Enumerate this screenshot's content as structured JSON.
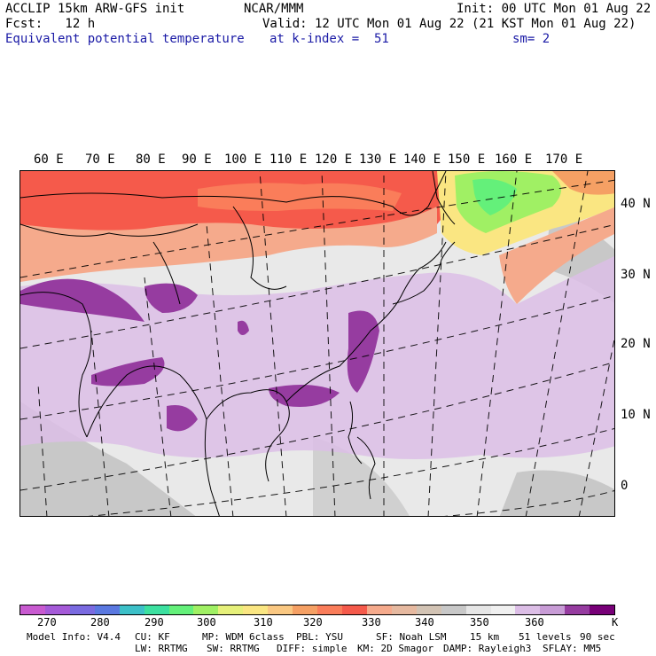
{
  "header": {
    "line1_left": "ACCLIP 15km ARW-GFS init",
    "line1_center": "NCAR/MMM",
    "line1_right": "Init: 00 UTC Mon 01 Aug 22",
    "line2_left": "Fcst:   12 h",
    "line2_right": "Valid: 12 UTC Mon 01 Aug 22 (21 KST Mon 01 Aug 22)",
    "line3_field": "Equivalent potential temperature",
    "line3_level": "at k-index =  51",
    "line3_smooth": "sm= 2"
  },
  "map": {
    "lon_labels": [
      "60 E",
      "70 E",
      "80 E",
      "90 E",
      "100 E",
      "110 E",
      "120 E",
      "130 E",
      "140 E",
      "150 E",
      "160 E",
      "170 E"
    ],
    "lat_labels": [
      "40 N",
      "30 N",
      "20 N",
      "10 N",
      "0"
    ]
  },
  "colorbar": {
    "colors": [
      "#c85ad0",
      "#a55ad8",
      "#7a6ae0",
      "#5a78e0",
      "#3cc0c8",
      "#3ce0a0",
      "#64f07a",
      "#a0f064",
      "#e6f07a",
      "#fae682",
      "#fac882",
      "#f5a064",
      "#fa7d5a",
      "#f55a4b",
      "#f5aa8c",
      "#e6b9a0",
      "#d2c3b4",
      "#c8c8c8",
      "#e6e6e6",
      "#f0f0f0",
      "#dcbee6",
      "#c89cd6",
      "#963ca0",
      "#780078"
    ],
    "ticks": [
      "270",
      "280",
      "290",
      "300",
      "310",
      "320",
      "330",
      "340",
      "350",
      "360"
    ],
    "unit": "K"
  },
  "footer": {
    "model_info": "Model Info: V4.4",
    "cu": "CU: KF",
    "mp": "MP: WDM 6class",
    "pbl": "PBL: YSU",
    "sf": "SF: Noah LSM",
    "res": "15 km",
    "levels": "51 levels",
    "dt": "90 sec",
    "lw": "LW: RRTMG",
    "sw": "SW: RRTMG",
    "diff": "DIFF: simple",
    "km": "KM: 2D Smagor",
    "damp": "DAMP: Rayleigh3",
    "sflay": "SFLAY: MM5"
  }
}
